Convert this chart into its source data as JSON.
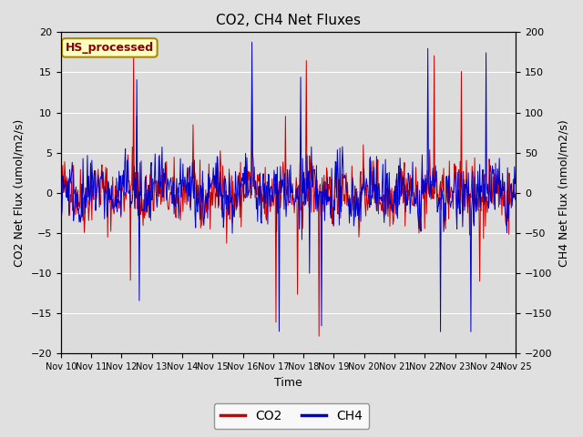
{
  "title": "CO2, CH4 Net Fluxes",
  "xlabel": "Time",
  "ylabel_left": "CO2 Net Flux (umol/m2/s)",
  "ylabel_right": "CH4 Net Flux (nmol/m2/s)",
  "ylim_left": [
    -20,
    20
  ],
  "ylim_right": [
    -200,
    200
  ],
  "yticks_left": [
    -20,
    -15,
    -10,
    -5,
    0,
    5,
    10,
    15,
    20
  ],
  "yticks_right": [
    -200,
    -150,
    -100,
    -50,
    0,
    50,
    100,
    150,
    200
  ],
  "xtick_labels": [
    "Nov 10",
    "Nov 11",
    "Nov 12",
    "Nov 13",
    "Nov 14",
    "Nov 15",
    "Nov 16",
    "Nov 17",
    "Nov 18",
    "Nov 19",
    "Nov 20",
    "Nov 21",
    "Nov 22",
    "Nov 23",
    "Nov 24",
    "Nov 25"
  ],
  "co2_color": "#CC0000",
  "ch4_color": "#0000CC",
  "legend_label_co2": "CO2",
  "legend_label_ch4": "CH4",
  "annotation_text": "HS_processed",
  "background_color": "#E0E0E0",
  "plot_bg_color": "#DCDCDC",
  "n_days": 15,
  "points_per_day": 48,
  "seed": 42
}
